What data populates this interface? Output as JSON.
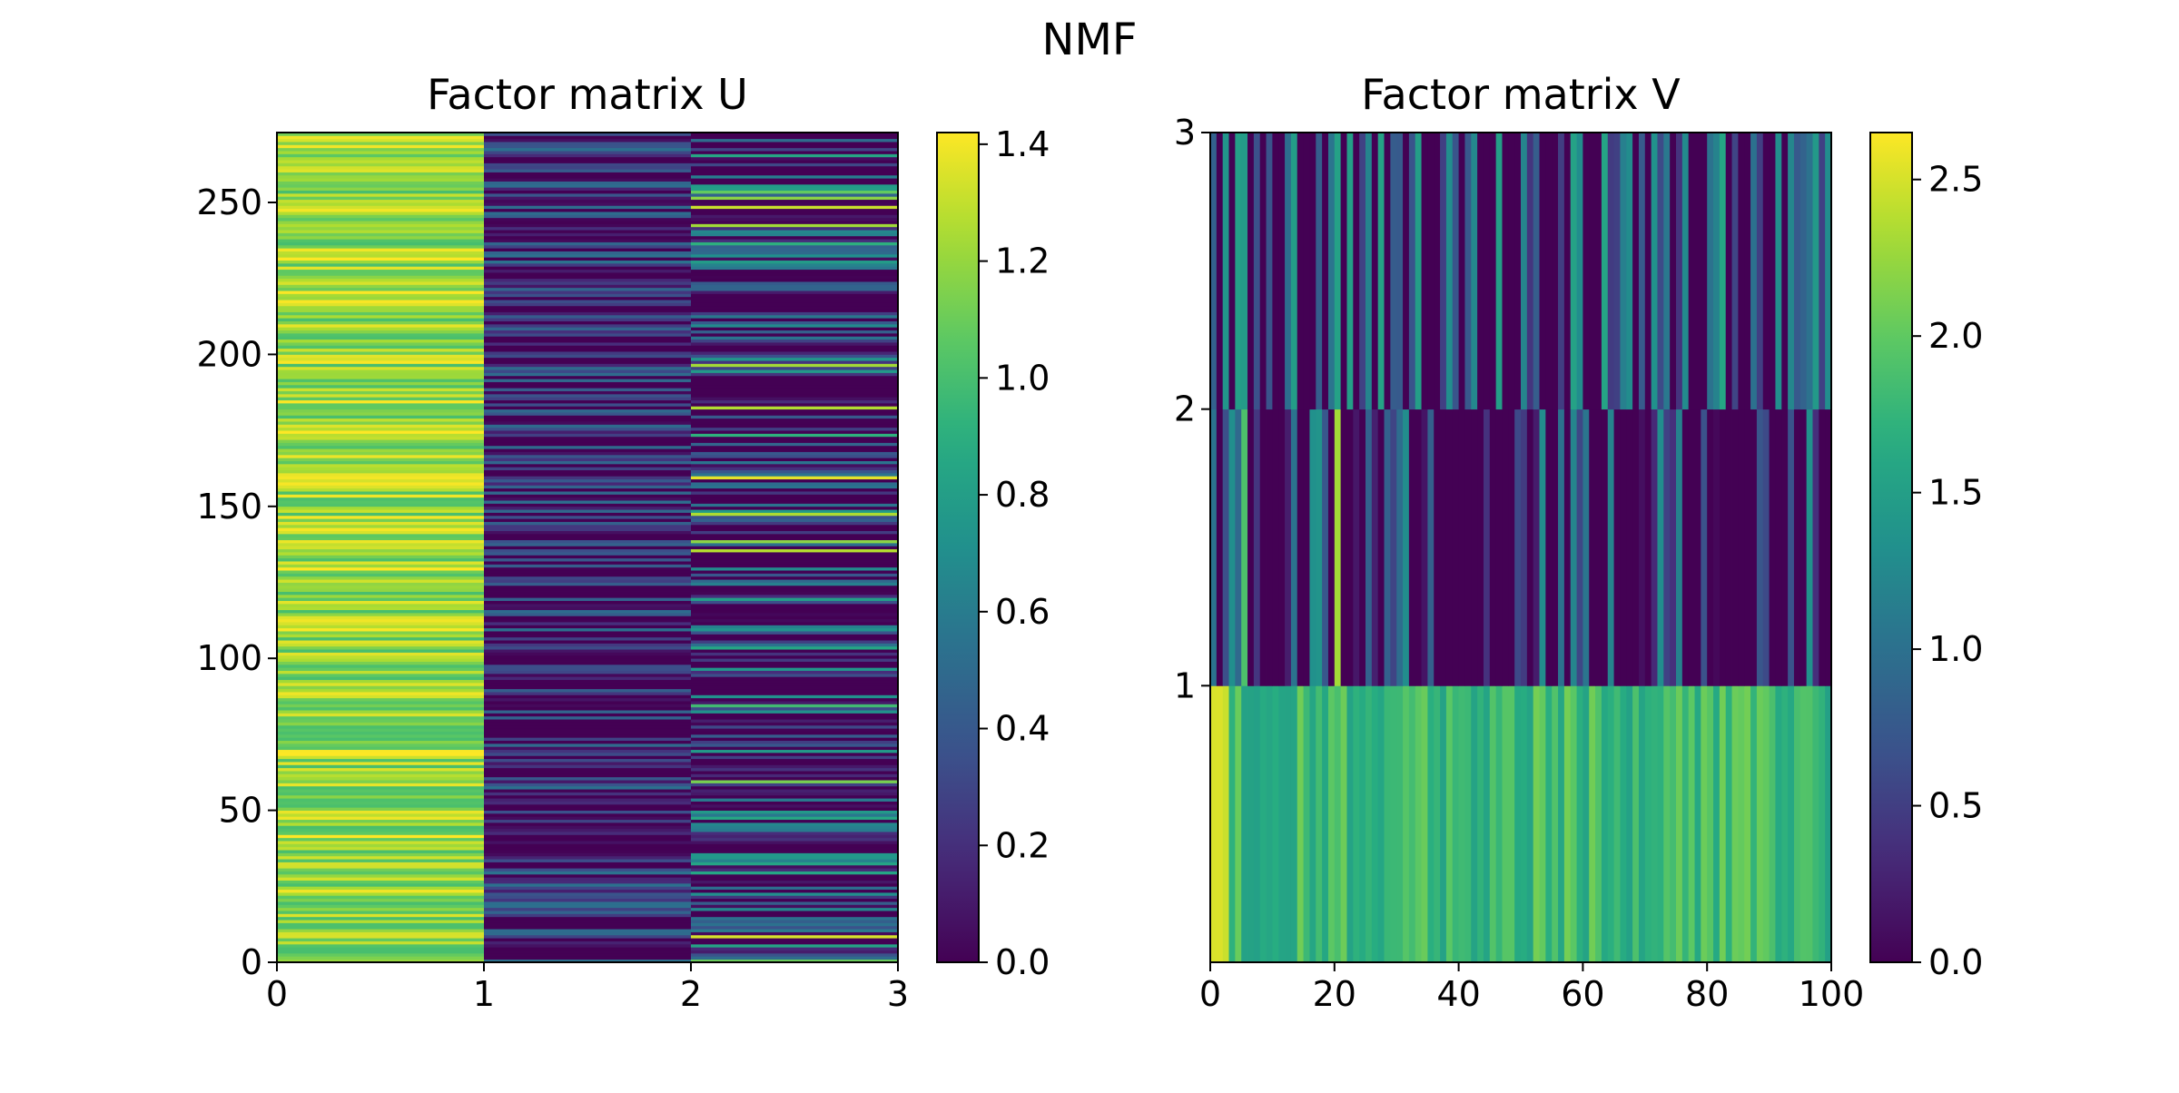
{
  "figure": {
    "suptitle": "NMF"
  },
  "chart_data": [
    {
      "type": "heatmap",
      "title": "Factor matrix U",
      "xlabel": "",
      "ylabel": "",
      "xlim": [
        0,
        3
      ],
      "ylim": [
        0,
        273
      ],
      "xticks": [
        0,
        1,
        2,
        3
      ],
      "yticks": [
        0,
        50,
        100,
        150,
        200,
        250
      ],
      "grid": false,
      "colormap": "viridis",
      "colorbar": {
        "range": [
          0.0,
          1.42
        ],
        "ticks": [
          "0.0",
          "0.2",
          "0.4",
          "0.6",
          "0.8",
          "1.0",
          "1.2",
          "1.4"
        ]
      },
      "shape": {
        "rows": 273,
        "cols": 3
      },
      "columns": [
        {
          "col": 0,
          "typical_range": [
            1.0,
            1.42
          ],
          "mean": 1.2
        },
        {
          "col": 1,
          "typical_range": [
            0.0,
            0.55
          ],
          "mean": 0.25
        },
        {
          "col": 2,
          "typical_range": [
            0.0,
            1.4
          ],
          "mean": 0.4
        }
      ]
    },
    {
      "type": "heatmap",
      "title": "Factor matrix V",
      "xlabel": "",
      "ylabel": "",
      "xlim": [
        0,
        100
      ],
      "ylim": [
        0,
        3
      ],
      "xticks": [
        0,
        20,
        40,
        60,
        80,
        100
      ],
      "yticks": [
        1,
        2,
        3
      ],
      "grid": false,
      "colormap": "viridis",
      "colorbar": {
        "range": [
          0.0,
          2.65
        ],
        "ticks": [
          "0.0",
          "0.5",
          "1.0",
          "1.5",
          "2.0",
          "2.5"
        ]
      },
      "shape": {
        "rows": 3,
        "cols": 100
      },
      "rows": [
        {
          "row": 0,
          "typical_range": [
            1.5,
            2.65
          ],
          "mean": 1.8
        },
        {
          "row": 1,
          "typical_range": [
            0.0,
            2.3
          ],
          "mean": 0.35
        },
        {
          "row": 2,
          "typical_range": [
            0.0,
            1.6
          ],
          "mean": 0.55
        }
      ]
    }
  ]
}
